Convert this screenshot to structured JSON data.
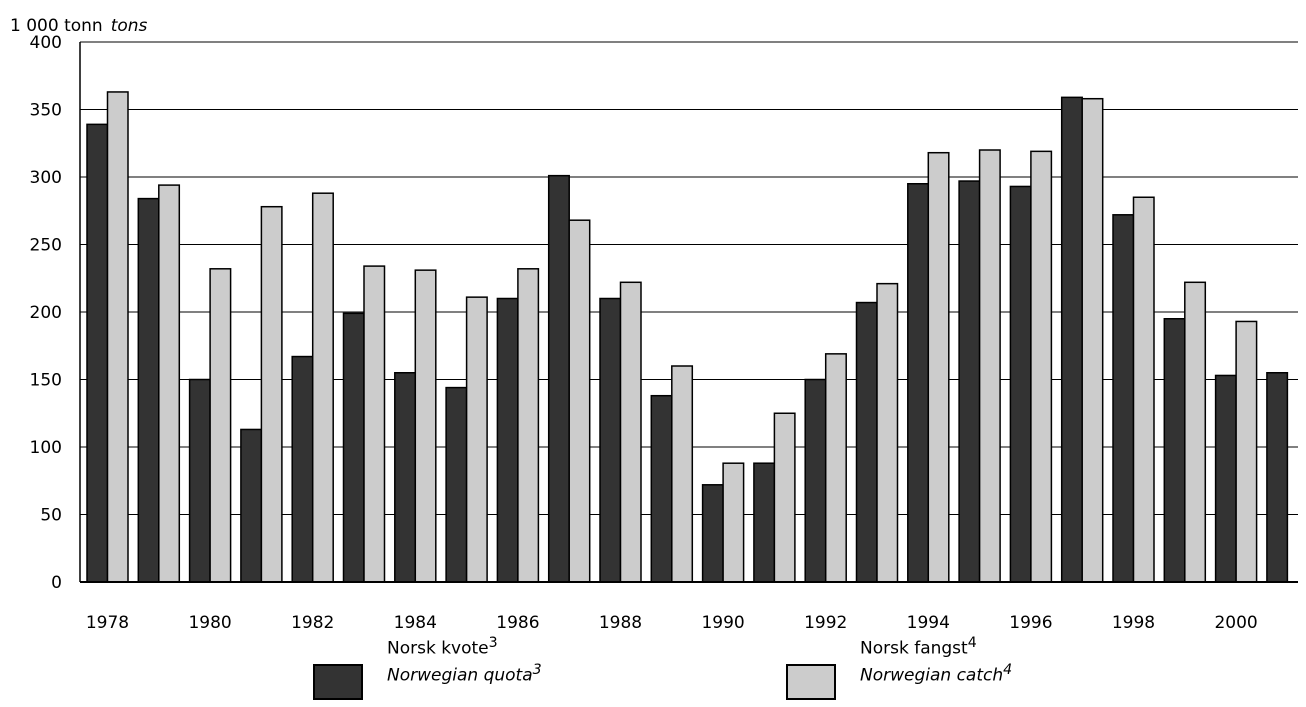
{
  "chart_data": {
    "type": "bar",
    "title": "",
    "ylabel": "1 000 tonn",
    "ylabel_en": "tons",
    "xlabel": "",
    "ylim": [
      0,
      400
    ],
    "yticks": [
      0,
      50,
      100,
      150,
      200,
      250,
      300,
      350,
      400
    ],
    "categories": [
      "1978",
      "1979",
      "1980",
      "1981",
      "1982",
      "1983",
      "1984",
      "1985",
      "1986",
      "1987",
      "1988",
      "1989",
      "1990",
      "1991",
      "1992",
      "1993",
      "1994",
      "1995",
      "1996",
      "1997",
      "1998",
      "1999",
      "2000",
      "2001"
    ],
    "xtick_labels": [
      "1978",
      "1980",
      "1982",
      "1984",
      "1986",
      "1988",
      "1990",
      "1992",
      "1994",
      "1996",
      "1998",
      "2000"
    ],
    "grid": "horizontal",
    "legend_position": "bottom",
    "series": [
      {
        "name": "Norsk kvote",
        "name_sup": "3",
        "name_en": "Norwegian quota",
        "name_en_sup": "3",
        "color": "#333333",
        "values": [
          339,
          284,
          150,
          113,
          167,
          199,
          155,
          144,
          210,
          301,
          210,
          138,
          72,
          88,
          150,
          207,
          295,
          297,
          293,
          359,
          272,
          195,
          153,
          155
        ]
      },
      {
        "name": "Norsk fangst",
        "name_sup": "4",
        "name_en": "Norwegian catch",
        "name_en_sup": "4",
        "color": "#cccccc",
        "values": [
          363,
          294,
          232,
          278,
          288,
          234,
          231,
          211,
          232,
          268,
          222,
          160,
          88,
          125,
          169,
          221,
          318,
          320,
          319,
          358,
          285,
          222,
          193,
          null
        ]
      }
    ]
  }
}
